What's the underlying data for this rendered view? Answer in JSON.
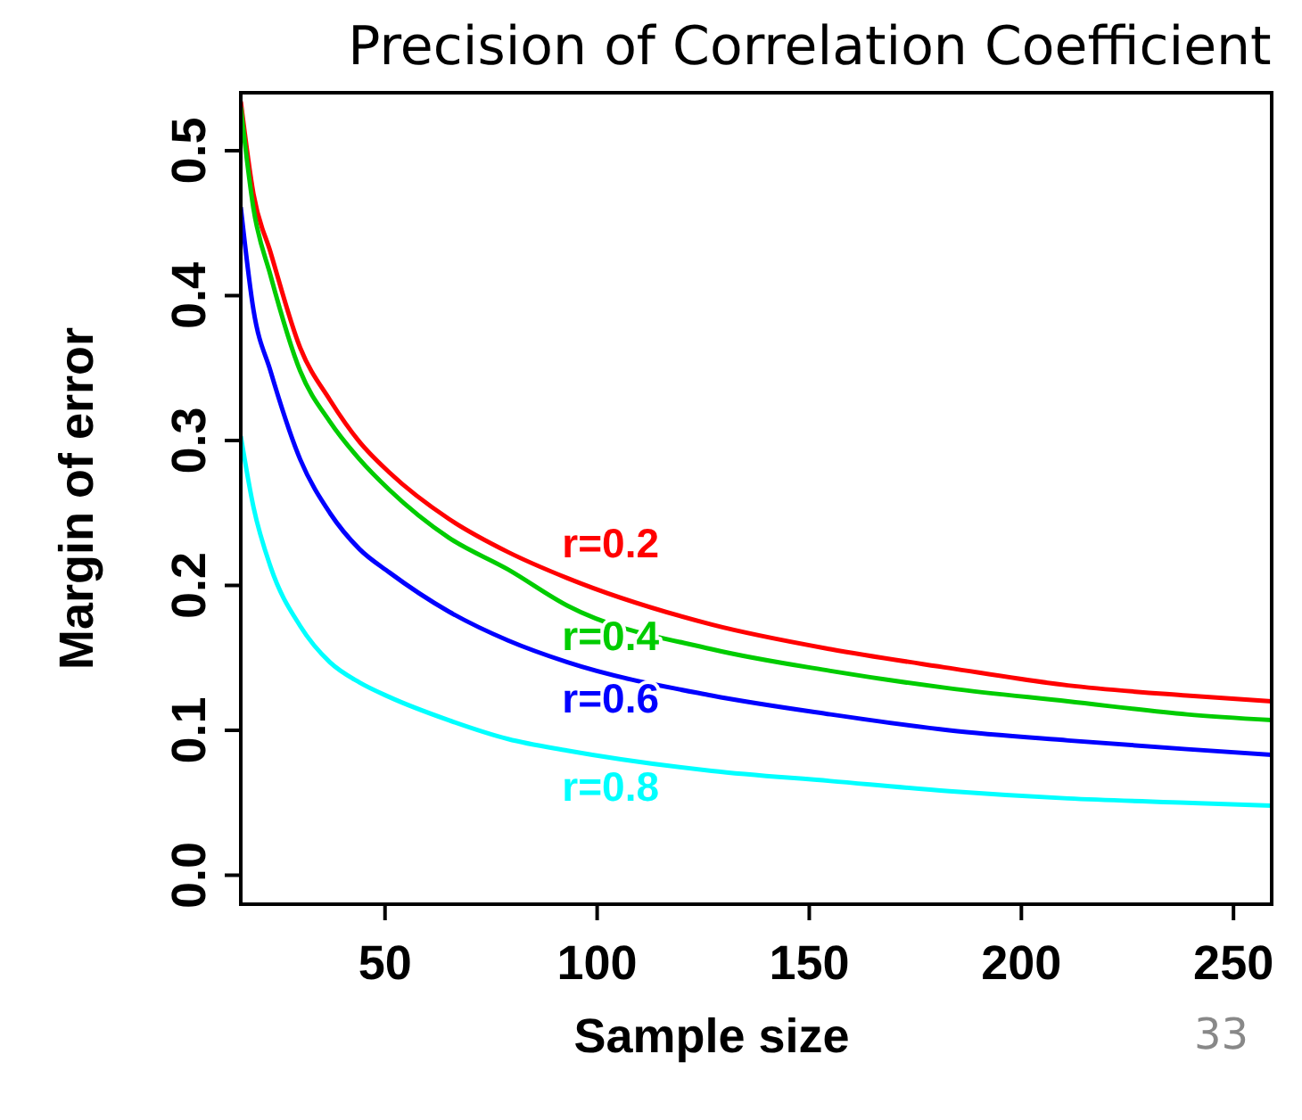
{
  "chart_data": {
    "type": "line",
    "title": "Precision of Correlation Coefficient",
    "xlabel": "Sample size",
    "ylabel": "Margin of error",
    "x": [
      16,
      19,
      23,
      30,
      37,
      44,
      51,
      65,
      79,
      93,
      127,
      155,
      183,
      211,
      239,
      259
    ],
    "xlim": [
      16,
      259
    ],
    "xticks": [
      50,
      100,
      150,
      200,
      250
    ],
    "ylim": [
      -0.02,
      0.54
    ],
    "yticks": [
      {
        "value": 0,
        "label": "0.0"
      },
      0.1,
      0.2,
      0.3,
      0.4,
      0.5
    ],
    "series": [
      {
        "name": "r=0.2",
        "color": "#ff0000",
        "values": [
          0.534,
          0.47,
          0.43,
          0.364,
          0.328,
          0.299,
          0.278,
          0.246,
          0.223,
          0.205,
          0.173,
          0.156,
          0.143,
          0.131,
          0.124,
          0.12
        ]
      },
      {
        "name": "r=0.4",
        "color": "#00cc00",
        "values": [
          0.53,
          0.46,
          0.414,
          0.348,
          0.313,
          0.287,
          0.266,
          0.233,
          0.211,
          0.186,
          0.156,
          0.141,
          0.129,
          0.12,
          0.111,
          0.107
        ]
      },
      {
        "name": "r=0.6",
        "color": "#0000ff",
        "values": [
          0.461,
          0.39,
          0.348,
          0.287,
          0.25,
          0.225,
          0.209,
          0.182,
          0.162,
          0.147,
          0.124,
          0.111,
          0.1,
          0.093,
          0.087,
          0.083
        ]
      },
      {
        "name": "r=0.8",
        "color": "#00ffff",
        "values": [
          0.303,
          0.254,
          0.213,
          0.172,
          0.147,
          0.133,
          0.123,
          0.107,
          0.094,
          0.086,
          0.072,
          0.065,
          0.058,
          0.053,
          0.05,
          0.048
        ]
      }
    ],
    "annotations": [
      "33"
    ],
    "grid": false,
    "line_style": "solid",
    "marker": "none"
  }
}
